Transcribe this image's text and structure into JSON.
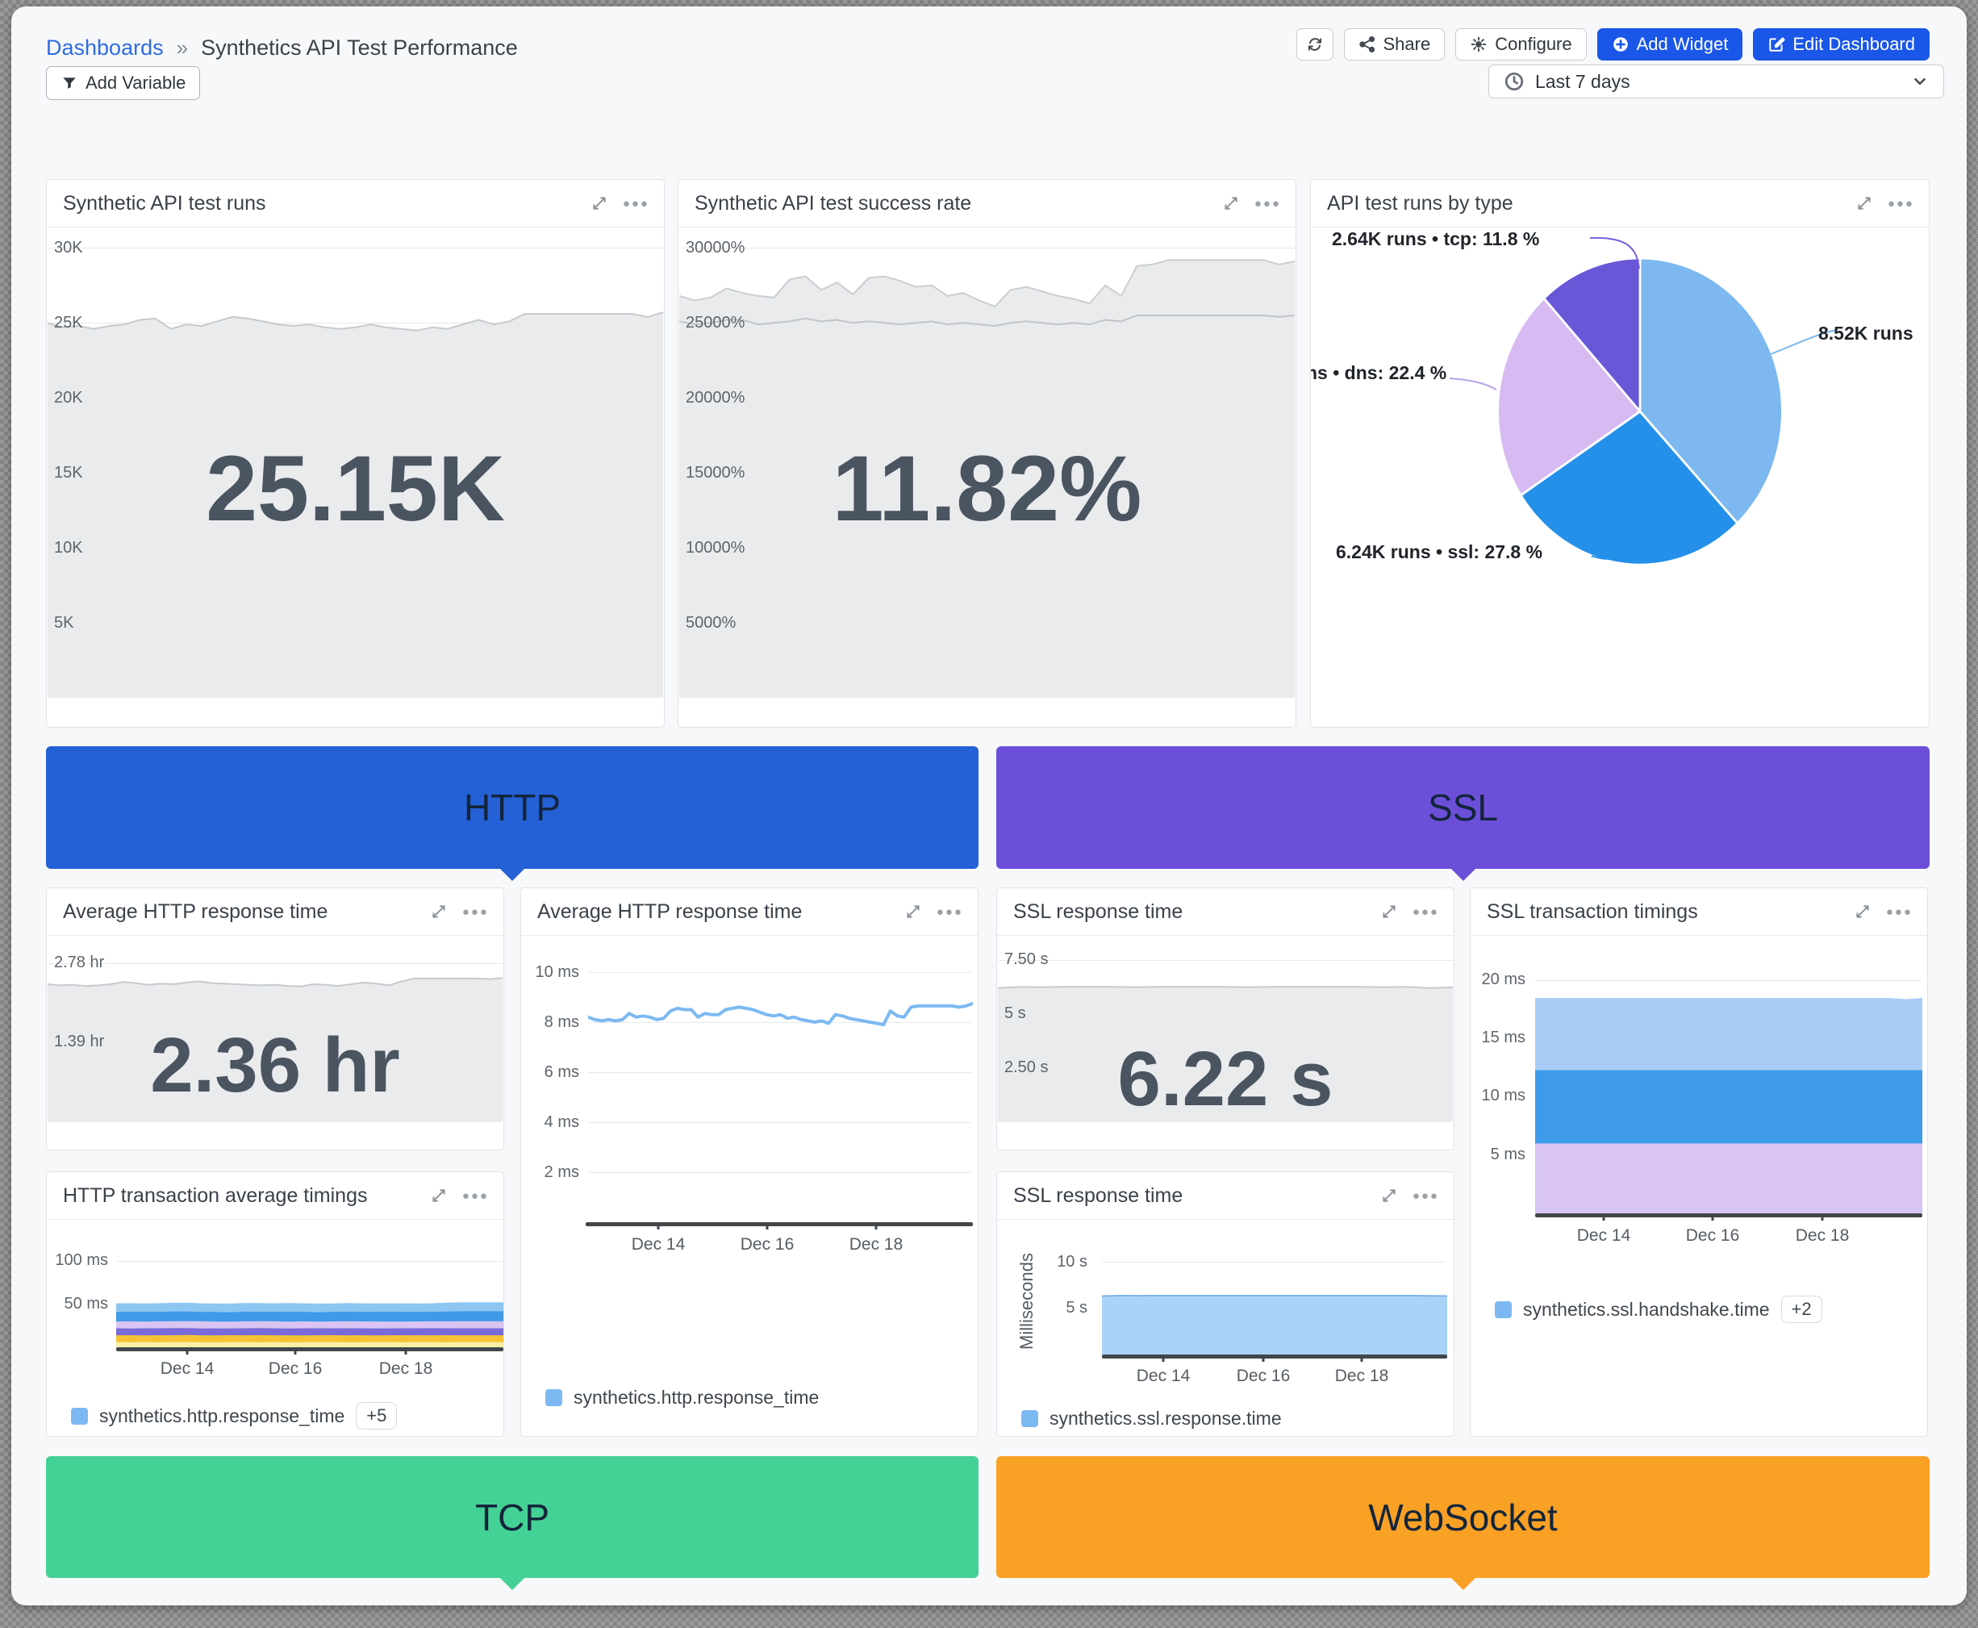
{
  "header": {
    "breadcrumb": "Dashboards",
    "separator": "»",
    "title": "Synthetics API Test Performance",
    "share": "Share",
    "configure": "Configure",
    "add_widget": "Add Widget",
    "edit_dashboard": "Edit Dashboard",
    "add_variable": "Add Variable",
    "time_range": "Last 7 days"
  },
  "sections": {
    "http": "HTTP",
    "ssl": "SSL",
    "tcp": "TCP",
    "websocket": "WebSocket"
  },
  "colors": {
    "accent_blue": "#1a56e8",
    "link_blue": "#2e6ce0",
    "banner_http": "#2461d6",
    "banner_ssl": "#6b4fd9",
    "banner_tcp": "#44d195",
    "banner_websocket": "#f9a125",
    "pie_http": "#7db8f0",
    "pie_ssl": "#2590ea",
    "pie_dns": "#d8baf2",
    "pie_tcp": "#6858d8",
    "series_blue": "#7cb9f2",
    "area_gray": "#e9ebed",
    "big_number": "#4b5461"
  },
  "widgets": {
    "runs": {
      "title": "Synthetic API test runs",
      "value": "25.15K",
      "yticks": [
        "30K",
        "25K",
        "20K",
        "15K",
        "10K",
        "5K"
      ],
      "chart": {
        "type": "area",
        "ylim": [
          0,
          31.2
        ],
        "series": [
          {
            "name": "synthetic api test runs",
            "fill": "#e9ebed",
            "stroke": "#c7cacd",
            "width": 2,
            "values": [
              25.0,
              24.7,
              24.8,
              24.6,
              24.8,
              24.9,
              25.2,
              25.3,
              24.6,
              24.9,
              24.8,
              25.1,
              25.4,
              25.3,
              25.1,
              24.9,
              24.8,
              24.9,
              24.7,
              24.6,
              24.7,
              24.9,
              24.7,
              24.6,
              24.5,
              24.7,
              24.6,
              24.9,
              25.2,
              24.9,
              25.1,
              25.6,
              25.6,
              25.6,
              25.6,
              25.6,
              25.6,
              25.6,
              25.6,
              25.4,
              25.7
            ]
          }
        ]
      }
    },
    "success": {
      "title": "Synthetic API test success rate",
      "value": "11.82%",
      "yticks": [
        "30000%",
        "25000%",
        "20000%",
        "15000%",
        "10000%",
        "5000%"
      ],
      "chart": {
        "type": "band",
        "ylim": [
          0,
          31200
        ],
        "series": [
          {
            "name": "upper",
            "fill": "#e9ebed",
            "stroke": "#cbced1",
            "width": 2,
            "values": [
              26800,
              26500,
              26700,
              27300,
              27000,
              26800,
              26700,
              27900,
              28100,
              27200,
              27700,
              26900,
              28000,
              28100,
              27800,
              27400,
              27500,
              26800,
              27000,
              26500,
              26100,
              27200,
              27400,
              27100,
              26800,
              26600,
              26300,
              27500,
              26800,
              28800,
              28900,
              29200,
              29200,
              29200,
              29200,
              29200,
              29200,
              29200,
              28900,
              29100
            ]
          },
          {
            "name": "lower",
            "stroke": "#c2c5c8",
            "width": 2,
            "values": [
              25100,
              24900,
              25000,
              25200,
              25200,
              24900,
              25000,
              25100,
              25300,
              25100,
              25200,
              25000,
              25100,
              25000,
              24900,
              25000,
              25100,
              24900,
              25000,
              24900,
              24800,
              25000,
              25100,
              25000,
              24900,
              25000,
              24900,
              25200,
              25100,
              25500,
              25500,
              25500,
              25500,
              25500,
              25500,
              25500,
              25500,
              25500,
              25400,
              25500
            ]
          }
        ]
      }
    },
    "by_type": {
      "title": "API test runs by type",
      "labels": {
        "tcp": "2.64K runs • tcp: 11.8 %",
        "http": "8.52K runs",
        "dns": "ns • dns: 22.4 %",
        "ssl": "6.24K runs • ssl: 27.8 %"
      },
      "chart": {
        "type": "pie",
        "slices": [
          {
            "name": "http",
            "value": 38.0,
            "runs": "8.52K",
            "color": "#7db8f0"
          },
          {
            "name": "ssl",
            "value": 27.8,
            "runs": "6.24K",
            "color": "#2590ea"
          },
          {
            "name": "dns",
            "value": 22.4,
            "color": "#d8baf2"
          },
          {
            "name": "tcp",
            "value": 11.8,
            "runs": "2.64K",
            "color": "#6858d8"
          }
        ]
      }
    },
    "http_avg_big": {
      "title": "Average HTTP response time",
      "value": "2.36 hr",
      "yticks": [
        "2.78 hr",
        "1.39 hr"
      ],
      "chart": {
        "type": "area",
        "ylim": [
          0,
          3.17
        ],
        "series": [
          {
            "name": "avg http response time",
            "fill": "#e9ebed",
            "stroke": "#c7cacd",
            "width": 2,
            "values": [
              2.42,
              2.4,
              2.41,
              2.39,
              2.4,
              2.42,
              2.46,
              2.44,
              2.41,
              2.43,
              2.42,
              2.45,
              2.47,
              2.44,
              2.43,
              2.42,
              2.41,
              2.4,
              2.41,
              2.39,
              2.38,
              2.42,
              2.41,
              2.39,
              2.42,
              2.45,
              2.43,
              2.4,
              2.47,
              2.52,
              2.52,
              2.52,
              2.52,
              2.52,
              2.52,
              2.51,
              2.53
            ]
          }
        ]
      }
    },
    "http_avg_line": {
      "title": "Average HTTP response time",
      "yticks": [
        "10 ms",
        "8 ms",
        "6 ms",
        "4 ms",
        "2 ms"
      ],
      "xticks": [
        "Dec 14",
        "Dec 16",
        "Dec 18"
      ],
      "legend": "synthetics.http.response_time",
      "chart": {
        "type": "line",
        "ylim": [
          0,
          10
        ],
        "series": [
          {
            "name": "synthetics.http.response_time",
            "stroke": "#7cb9f2",
            "width": 4,
            "values": [
              8.2,
              8.1,
              8.05,
              8.1,
              8.05,
              8.1,
              8.35,
              8.2,
              8.25,
              8.2,
              8.1,
              8.15,
              8.45,
              8.55,
              8.5,
              8.5,
              8.2,
              8.35,
              8.3,
              8.3,
              8.5,
              8.55,
              8.6,
              8.55,
              8.5,
              8.4,
              8.3,
              8.25,
              8.3,
              8.15,
              8.2,
              8.1,
              8.05,
              8.0,
              8.05,
              7.95,
              8.3,
              8.25,
              8.15,
              8.1,
              8.05,
              8.0,
              7.95,
              7.9,
              8.45,
              8.25,
              8.2,
              8.6,
              8.65,
              8.65,
              8.65,
              8.65,
              8.65,
              8.65,
              8.6,
              8.65,
              8.75
            ]
          }
        ]
      }
    },
    "http_timings": {
      "title": "HTTP transaction average timings",
      "yticks": [
        "100 ms",
        "50 ms"
      ],
      "xticks": [
        "Dec 14",
        "Dec 16",
        "Dec 18"
      ],
      "legend": "synthetics.http.response_time",
      "badge": "+5",
      "chart": {
        "type": "stacked",
        "ylim": [
          0,
          104
        ],
        "series": [
          {
            "name": "layer-pale-yellow",
            "color": "#f9f0a7",
            "values": [
              6,
              5.8,
              6,
              5.9,
              6,
              6,
              5.8,
              5.9,
              6,
              6,
              5.9,
              6,
              5.8,
              5.9,
              6,
              6,
              5.9,
              5.8,
              6,
              6,
              5.9,
              6,
              6,
              5.9,
              6,
              6,
              6,
              6
            ]
          },
          {
            "name": "layer-gold",
            "color": "#f5c335",
            "values": [
              8,
              8.2,
              7.9,
              8.1,
              8,
              8.3,
              8,
              7.9,
              8.1,
              8,
              8.2,
              8,
              8.1,
              7.9,
              8,
              8.1,
              8,
              8.2,
              7.9,
              8,
              8.1,
              8,
              8,
              8.1,
              8,
              8,
              8,
              8
            ]
          },
          {
            "name": "layer-purple",
            "color": "#7a6ad9",
            "values": [
              8,
              7.8,
              8.1,
              8,
              8.2,
              7.9,
              8,
              8.1,
              7.8,
              8,
              8.1,
              8,
              7.9,
              8.2,
              8,
              7.9,
              8.1,
              8,
              8,
              7.9,
              8,
              8,
              8.1,
              8,
              8,
              8,
              8,
              8
            ]
          },
          {
            "name": "layer-lavender",
            "color": "#d9c4f2",
            "values": [
              8,
              8.3,
              7.9,
              8.1,
              8,
              8.2,
              8.4,
              8,
              7.8,
              8.1,
              8,
              8.3,
              8,
              8.1,
              7.9,
              8,
              8.2,
              8,
              8.1,
              8,
              7.9,
              8,
              8,
              8.1,
              8.3,
              8.3,
              8.3,
              8.3
            ]
          },
          {
            "name": "layer-blue",
            "color": "#3f9ae8",
            "values": [
              11,
              10.8,
              11.2,
              11,
              11.4,
              11,
              10.8,
              11.1,
              11,
              11.3,
              11,
              10.9,
              11.2,
              11,
              10.8,
              11,
              11.1,
              10.9,
              11,
              11.2,
              11,
              10.9,
              11,
              11.4,
              11.5,
              11.5,
              11.5,
              11.5
            ]
          },
          {
            "name": "layer-light-blue",
            "color": "#8ec6f2",
            "values": [
              10,
              10.3,
              9.8,
              10.1,
              10,
              10.4,
              10,
              9.9,
              10.2,
              10,
              10.1,
              9.9,
              10.3,
              10,
              10.1,
              9.8,
              10,
              10.2,
              10,
              9.9,
              10.1,
              10,
              10,
              10.2,
              10.4,
              10.4,
              10.4,
              10.4
            ]
          }
        ]
      }
    },
    "ssl_big": {
      "title": "SSL response time",
      "value": "6.22 s",
      "yticks": [
        "7.50 s",
        "5 s",
        "2.50 s"
      ],
      "chart": {
        "type": "area",
        "ylim": [
          0,
          8.35
        ],
        "series": [
          {
            "name": "ssl response time",
            "fill": "#e9ebed",
            "stroke": "#c7cacd",
            "width": 2,
            "values": [
              6.2,
              6.25,
              6.24,
              6.26,
              6.25,
              6.25,
              6.24,
              6.25,
              6.26,
              6.25,
              6.25,
              6.24,
              6.25,
              6.25,
              6.26,
              6.25,
              6.25,
              6.24,
              6.25,
              6.2,
              6.23
            ]
          }
        ]
      }
    },
    "ssl_stack": {
      "title": "SSL transaction timings",
      "yticks": [
        "20 ms",
        "15 ms",
        "10 ms",
        "5 ms"
      ],
      "xticks": [
        "Dec 14",
        "Dec 16",
        "Dec 18"
      ],
      "legend": "synthetics.ssl.handshake.time",
      "badge": "+2",
      "chart": {
        "type": "stacked",
        "ylim": [
          0,
          21
        ],
        "series": [
          {
            "name": "layer-lavender",
            "color": "#d9c5f3",
            "values": [
              6,
              6,
              6,
              6,
              6,
              6,
              6,
              6,
              6,
              6,
              6,
              6,
              6,
              6,
              6,
              6,
              6,
              6,
              6,
              6,
              6,
              6,
              6,
              6,
              6
            ]
          },
          {
            "name": "layer-blue",
            "color": "#3e9be9",
            "values": [
              6.3,
              6.3,
              6.3,
              6.3,
              6.3,
              6.3,
              6.3,
              6.3,
              6.3,
              6.3,
              6.3,
              6.3,
              6.3,
              6.3,
              6.3,
              6.3,
              6.3,
              6.3,
              6.3,
              6.3,
              6.3,
              6.3,
              6.3,
              6.3,
              6.3
            ]
          },
          {
            "name": "layer-light-blue",
            "color": "#a8ccf5",
            "values": [
              6.2,
              6.2,
              6.2,
              6.2,
              6.2,
              6.2,
              6.2,
              6.2,
              6.2,
              6.2,
              6.2,
              6.2,
              6.2,
              6.2,
              6.2,
              6.2,
              6.2,
              6.2,
              6.2,
              6.2,
              6.2,
              6.2,
              6.2,
              6.1,
              6.2
            ]
          }
        ]
      }
    },
    "ssl_resp": {
      "title": "SSL response time",
      "ylabel": "Milliseconds",
      "yticks": [
        "10 s",
        "5 s"
      ],
      "xticks": [
        "Dec 14",
        "Dec 16",
        "Dec 18"
      ],
      "legend": "synthetics.ssl.response.time",
      "chart": {
        "type": "area",
        "ylim": [
          0,
          10
        ],
        "series": [
          {
            "name": "synthetics.ssl.response.time",
            "fill": "#a9d4f7",
            "stroke": "#7fb4e8",
            "width": 2,
            "values": [
              6.3,
              6.35,
              6.34,
              6.35,
              6.35,
              6.35,
              6.35,
              6.35,
              6.35,
              6.35,
              6.35,
              6.35,
              6.35,
              6.35,
              6.35,
              6.35,
              6.35,
              6.35,
              6.35,
              6.33,
              6.3
            ]
          }
        ]
      }
    }
  }
}
